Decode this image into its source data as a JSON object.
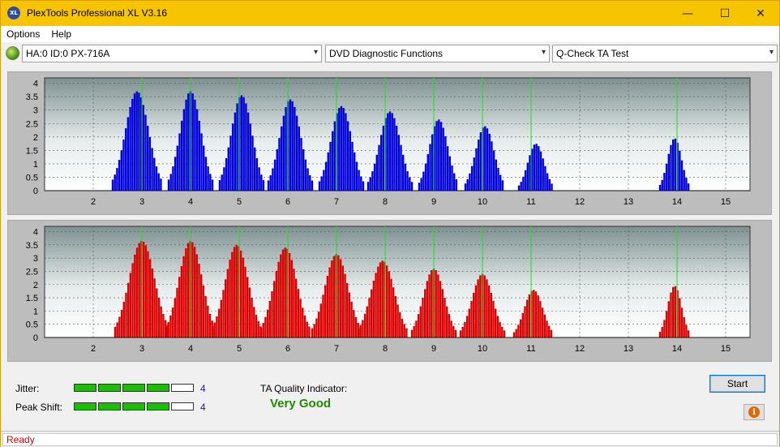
{
  "window": {
    "title": "PlexTools Professional XL V3.16",
    "icon_label": "XL",
    "controls": {
      "minimize": "—",
      "maximize": "☐",
      "close": "✕"
    }
  },
  "menu": {
    "items": [
      "Options",
      "Help"
    ]
  },
  "toolbar": {
    "drive": "HA:0 ID:0  PX-716A",
    "function": "DVD Diagnostic Functions",
    "test": "Q-Check TA Test",
    "dropdown_icon": "chevron-down-icon"
  },
  "chart_data": [
    {
      "type": "bar",
      "name": "ta-top",
      "color": "#0000dd",
      "xlim": [
        1.0,
        15.5
      ],
      "ylim": [
        0,
        4.2
      ],
      "x_ticks": [
        2,
        3,
        4,
        5,
        6,
        7,
        8,
        9,
        10,
        11,
        12,
        13,
        14,
        15
      ],
      "y_ticks": [
        0,
        0.5,
        1,
        1.5,
        2,
        2.5,
        3,
        3.5,
        4
      ],
      "y_tick_labels": [
        "0",
        "0.5",
        "1",
        "1.5",
        "2",
        "2.5",
        "3",
        "3.5",
        "4"
      ],
      "marker_lines": [
        3,
        4,
        5,
        6,
        7,
        8,
        9,
        10,
        11,
        14
      ],
      "peaks": [
        {
          "center": 2.9,
          "height": 3.7,
          "halfwidth": 0.5
        },
        {
          "center": 4.0,
          "height": 3.7,
          "halfwidth": 0.45
        },
        {
          "center": 5.05,
          "height": 3.55,
          "halfwidth": 0.45
        },
        {
          "center": 6.05,
          "height": 3.4,
          "halfwidth": 0.45
        },
        {
          "center": 7.1,
          "height": 3.15,
          "halfwidth": 0.45
        },
        {
          "center": 8.1,
          "height": 2.95,
          "halfwidth": 0.45
        },
        {
          "center": 9.1,
          "height": 2.65,
          "halfwidth": 0.4
        },
        {
          "center": 10.05,
          "height": 2.4,
          "halfwidth": 0.4
        },
        {
          "center": 11.1,
          "height": 1.75,
          "halfwidth": 0.35
        },
        {
          "center": 13.95,
          "height": 1.95,
          "halfwidth": 0.3
        }
      ]
    },
    {
      "type": "bar",
      "name": "ta-bottom",
      "color": "#dd0000",
      "xlim": [
        1.0,
        15.5
      ],
      "ylim": [
        0,
        4.2
      ],
      "x_ticks": [
        2,
        3,
        4,
        5,
        6,
        7,
        8,
        9,
        10,
        11,
        12,
        13,
        14,
        15
      ],
      "y_ticks": [
        0,
        0.5,
        1,
        1.5,
        2,
        2.5,
        3,
        3.5,
        4
      ],
      "y_tick_labels": [
        "0",
        "0.5",
        "1",
        "1.5",
        "2",
        "2.5",
        "3",
        "3.5",
        "4"
      ],
      "marker_lines": [
        3,
        4,
        5,
        6,
        7,
        8,
        9,
        10,
        11,
        14
      ],
      "peaks": [
        {
          "center": 3.0,
          "height": 3.65,
          "halfwidth": 0.55
        },
        {
          "center": 4.0,
          "height": 3.65,
          "halfwidth": 0.5
        },
        {
          "center": 4.95,
          "height": 3.5,
          "halfwidth": 0.5
        },
        {
          "center": 5.95,
          "height": 3.4,
          "halfwidth": 0.5
        },
        {
          "center": 7.0,
          "height": 3.15,
          "halfwidth": 0.5
        },
        {
          "center": 7.95,
          "height": 2.9,
          "halfwidth": 0.5
        },
        {
          "center": 9.0,
          "height": 2.6,
          "halfwidth": 0.45
        },
        {
          "center": 10.0,
          "height": 2.4,
          "halfwidth": 0.45
        },
        {
          "center": 11.05,
          "height": 1.8,
          "halfwidth": 0.4
        },
        {
          "center": 13.95,
          "height": 1.95,
          "halfwidth": 0.3
        }
      ]
    }
  ],
  "results": {
    "jitter_label": "Jitter:",
    "jitter_value": "4",
    "jitter_level": 4,
    "peak_shift_label": "Peak Shift:",
    "peak_shift_value": "4",
    "peak_shift_level": 4,
    "meter_max": 5,
    "quality_label": "TA Quality Indicator:",
    "quality_value": "Very Good"
  },
  "buttons": {
    "start": "Start",
    "info_icon": "info-icon"
  },
  "status": {
    "text": "Ready"
  }
}
